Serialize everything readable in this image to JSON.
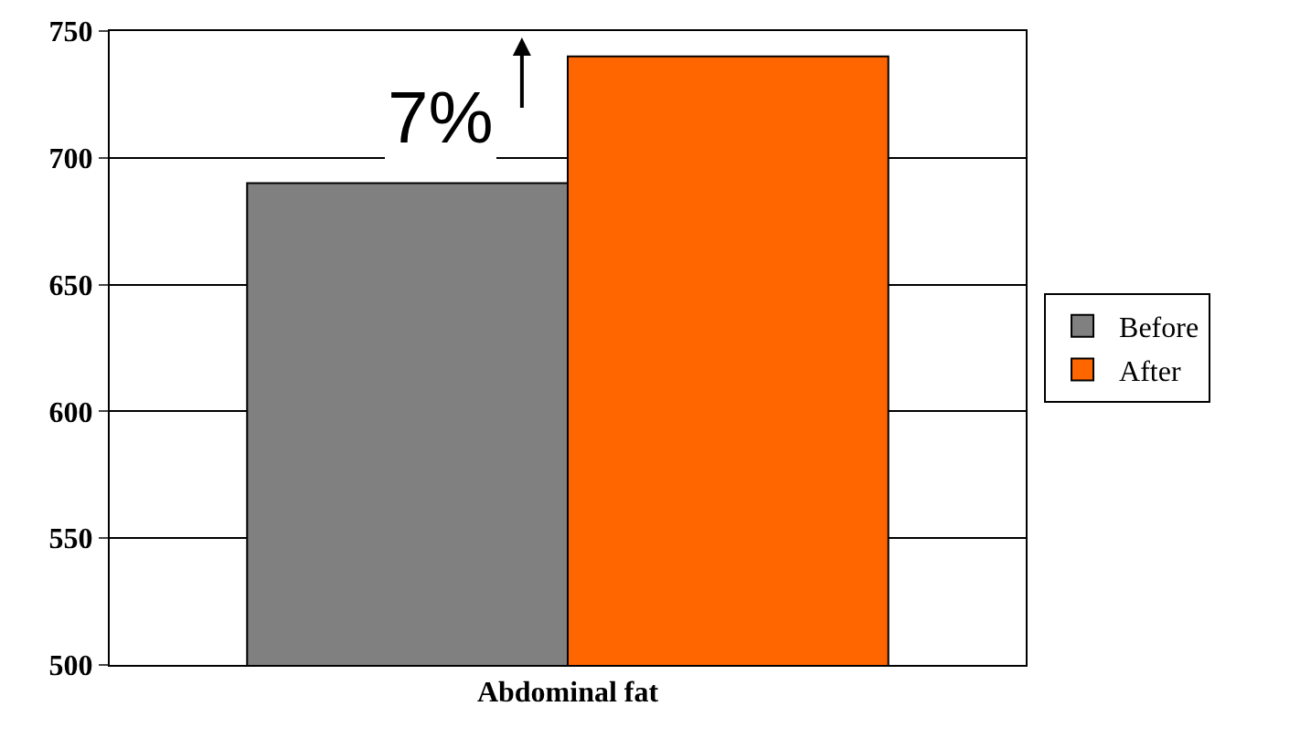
{
  "chart_data": {
    "type": "bar",
    "categories": [
      "Abdominal fat"
    ],
    "series": [
      {
        "name": "Before",
        "color": "#808080",
        "values": [
          690
        ]
      },
      {
        "name": "After",
        "color": "#ff6600",
        "values": [
          740
        ]
      }
    ],
    "ylim": [
      500,
      750
    ],
    "yticks": [
      500,
      550,
      600,
      650,
      700,
      750
    ],
    "grid": "y",
    "legend": "right",
    "annotations": [
      "7%"
    ]
  }
}
